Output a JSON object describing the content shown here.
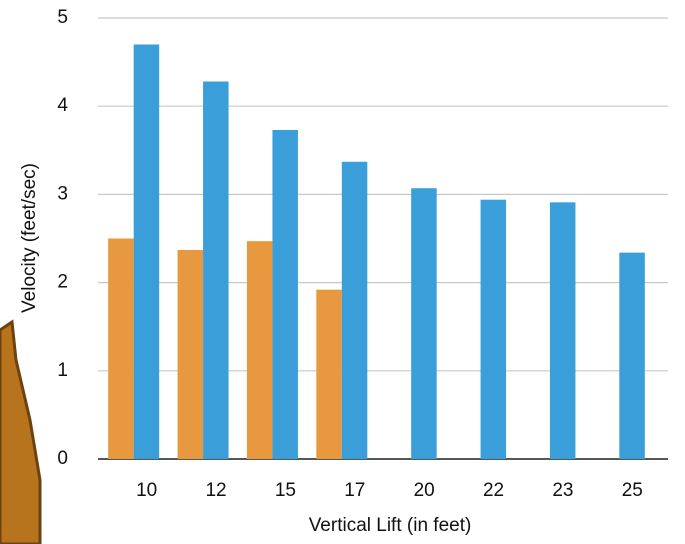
{
  "chart_data": {
    "type": "bar",
    "x_label": "Vertical Lift (in feet)",
    "y_label": "Velocity (feet/sec)",
    "categories": [
      "10",
      "12",
      "15",
      "17",
      "20",
      "22",
      "23",
      "25"
    ],
    "series": [
      {
        "color": "#e8983e",
        "values": [
          2.5,
          2.37,
          2.47,
          1.92,
          null,
          null,
          null,
          null
        ]
      },
      {
        "color": "#3a9fd8",
        "values": [
          4.7,
          4.28,
          3.73,
          3.37,
          3.07,
          2.94,
          2.91,
          2.34
        ]
      }
    ],
    "ylim": [
      0,
      5
    ],
    "yticks": [
      0,
      1,
      2,
      3,
      4,
      5
    ],
    "grid": true
  }
}
